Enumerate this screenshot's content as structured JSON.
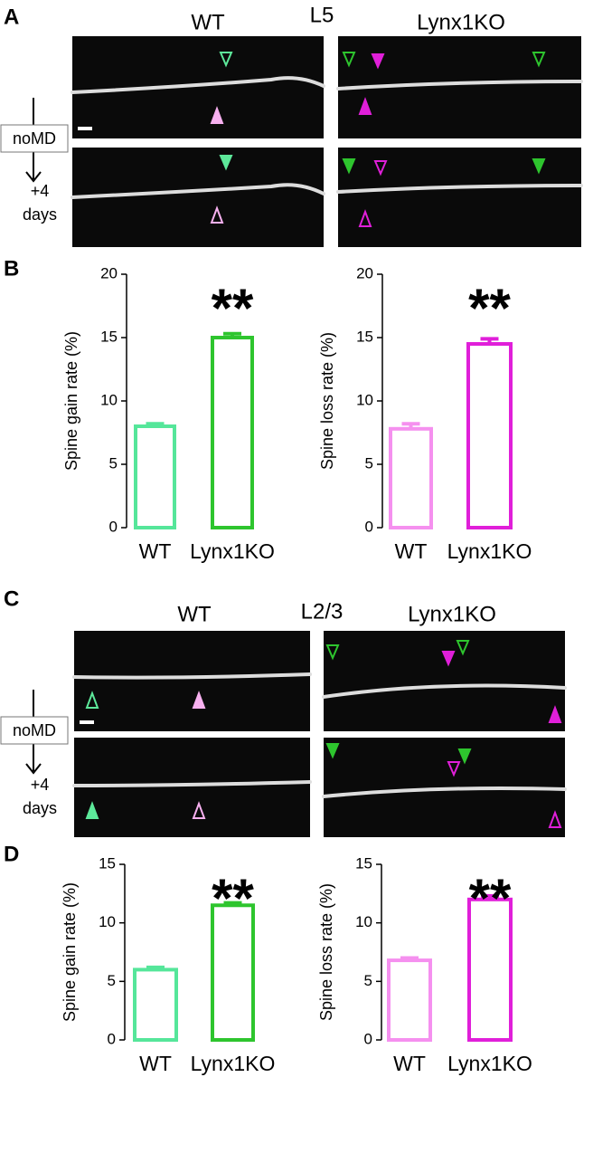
{
  "panels": {
    "A": {
      "letter": "A",
      "left": "WT",
      "layer": "L5",
      "right": "Lynx1KO",
      "before": "noMD",
      "after_line1": "+4",
      "after_line2": "days"
    },
    "B": {
      "letter": "B"
    },
    "C": {
      "letter": "C",
      "left": "WT",
      "layer": "L2/3",
      "right": "Lynx1KO",
      "before": "noMD",
      "after_line1": "+4",
      "after_line2": "days"
    },
    "D": {
      "letter": "D"
    }
  },
  "chart_data": [
    {
      "type": "bar",
      "y_label": "Spine gain rate (%)",
      "categories": [
        "WT",
        "Lynx1KO"
      ],
      "values": [
        8.0,
        15.0
      ],
      "errors": [
        0.2,
        0.3
      ],
      "colors": [
        "#55e69a",
        "#2ec52e"
      ],
      "annotation": "**",
      "ylim": [
        0,
        20
      ],
      "yticks": [
        0,
        5,
        10,
        15,
        20
      ]
    },
    {
      "type": "bar",
      "y_label": "Spine loss rate (%)",
      "categories": [
        "WT",
        "Lynx1KO"
      ],
      "values": [
        7.8,
        14.5
      ],
      "errors": [
        0.4,
        0.4
      ],
      "colors": [
        "#f590ef",
        "#e01fd9"
      ],
      "annotation": "**",
      "ylim": [
        0,
        20
      ],
      "yticks": [
        0,
        5,
        10,
        15,
        20
      ]
    },
    {
      "type": "bar",
      "y_label": "Spine gain rate (%)",
      "categories": [
        "WT",
        "Lynx1KO"
      ],
      "values": [
        6.0,
        11.5
      ],
      "errors": [
        0.2,
        0.2
      ],
      "colors": [
        "#55e69a",
        "#2ec52e"
      ],
      "annotation": "**",
      "ylim": [
        0,
        15
      ],
      "yticks": [
        0,
        5,
        10,
        15
      ]
    },
    {
      "type": "bar",
      "y_label": "Spine loss rate (%)",
      "categories": [
        "WT",
        "Lynx1KO"
      ],
      "values": [
        6.8,
        12.0
      ],
      "errors": [
        0.2,
        0.3
      ],
      "colors": [
        "#f590ef",
        "#e01fd9"
      ],
      "annotation": "**",
      "ylim": [
        0,
        15
      ],
      "yticks": [
        0,
        5,
        10,
        15
      ]
    }
  ]
}
